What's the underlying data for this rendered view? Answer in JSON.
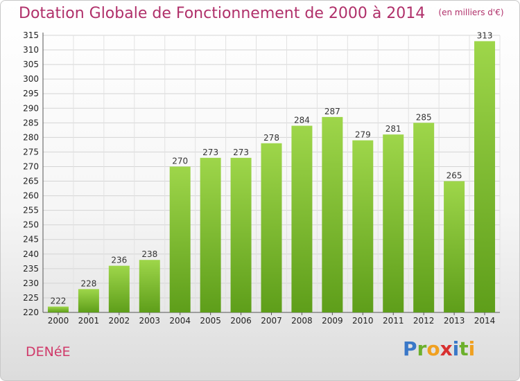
{
  "title": "Dotation Globale de Fonctionnement de 2000 à 2014",
  "unit": "(en milliers d'€)",
  "commune": "DENéE",
  "logo": [
    "P",
    "r",
    "o",
    "x",
    "i",
    "t",
    "i"
  ],
  "colors": {
    "bar": "#7fbf2e",
    "bar_dark": "#5a9a1c",
    "title": "#b0306a",
    "commune": "#d03a6a"
  },
  "chart_data": {
    "type": "bar",
    "title": "Dotation Globale de Fonctionnement de 2000 à 2014",
    "categories": [
      "2000",
      "2001",
      "2002",
      "2003",
      "2004",
      "2005",
      "2006",
      "2007",
      "2008",
      "2009",
      "2010",
      "2011",
      "2012",
      "2013",
      "2014"
    ],
    "values": [
      222,
      228,
      236,
      238,
      270,
      273,
      273,
      278,
      284,
      287,
      279,
      281,
      285,
      265,
      313
    ],
    "ylim": [
      220,
      315
    ],
    "ytick_step": 5,
    "grid": true,
    "xlabel": "",
    "ylabel": ""
  }
}
